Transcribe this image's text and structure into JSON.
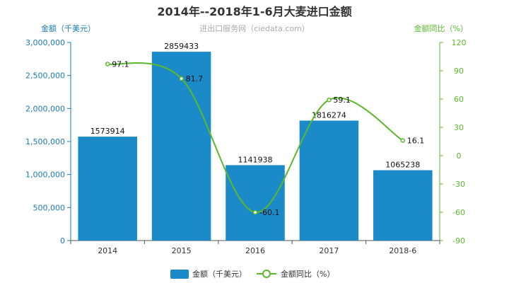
{
  "chart_data": {
    "type": "bar",
    "title": "2014年--2018年1-6月大麦进口金额",
    "subtitle": "进出口服务网（ciedata.com）",
    "categories": [
      "2014",
      "2015",
      "2016",
      "2017",
      "2018-6"
    ],
    "left_axis": {
      "label": "金额（千美元）",
      "ylim": [
        0,
        3000000
      ],
      "ticks": [
        0,
        500000,
        1000000,
        1500000,
        2000000,
        2500000,
        3000000
      ],
      "tick_labels": [
        "0",
        "500,000",
        "1,000,000",
        "1,500,000",
        "2,000,000",
        "2,500,000",
        "3,000,000"
      ]
    },
    "right_axis": {
      "label": "金额同比（%）",
      "ylim": [
        -90,
        120
      ],
      "ticks": [
        -90,
        -60,
        -30,
        0,
        30,
        60,
        90,
        120
      ],
      "tick_labels": [
        "-90",
        "-60",
        "-30",
        "0",
        "30",
        "60",
        "90",
        "120"
      ]
    },
    "series": [
      {
        "name": "金额（千美元）",
        "type": "bar",
        "axis": "left",
        "color": "#1a8bc8",
        "values": [
          1573914,
          2859433,
          1141938,
          1816274,
          1065238
        ],
        "labels": [
          "1573914",
          "2859433",
          "1141938",
          "1816274",
          "1065238"
        ]
      },
      {
        "name": "金额同比（%）",
        "type": "line",
        "axis": "right",
        "color": "#5cb82c",
        "values": [
          97.1,
          81.7,
          -60.1,
          59.1,
          16.1
        ],
        "labels": [
          "97.1",
          "81.7",
          "-60.1",
          "59.1",
          "16.1"
        ]
      }
    ],
    "grid": false,
    "legend_position": "bottom-center"
  }
}
